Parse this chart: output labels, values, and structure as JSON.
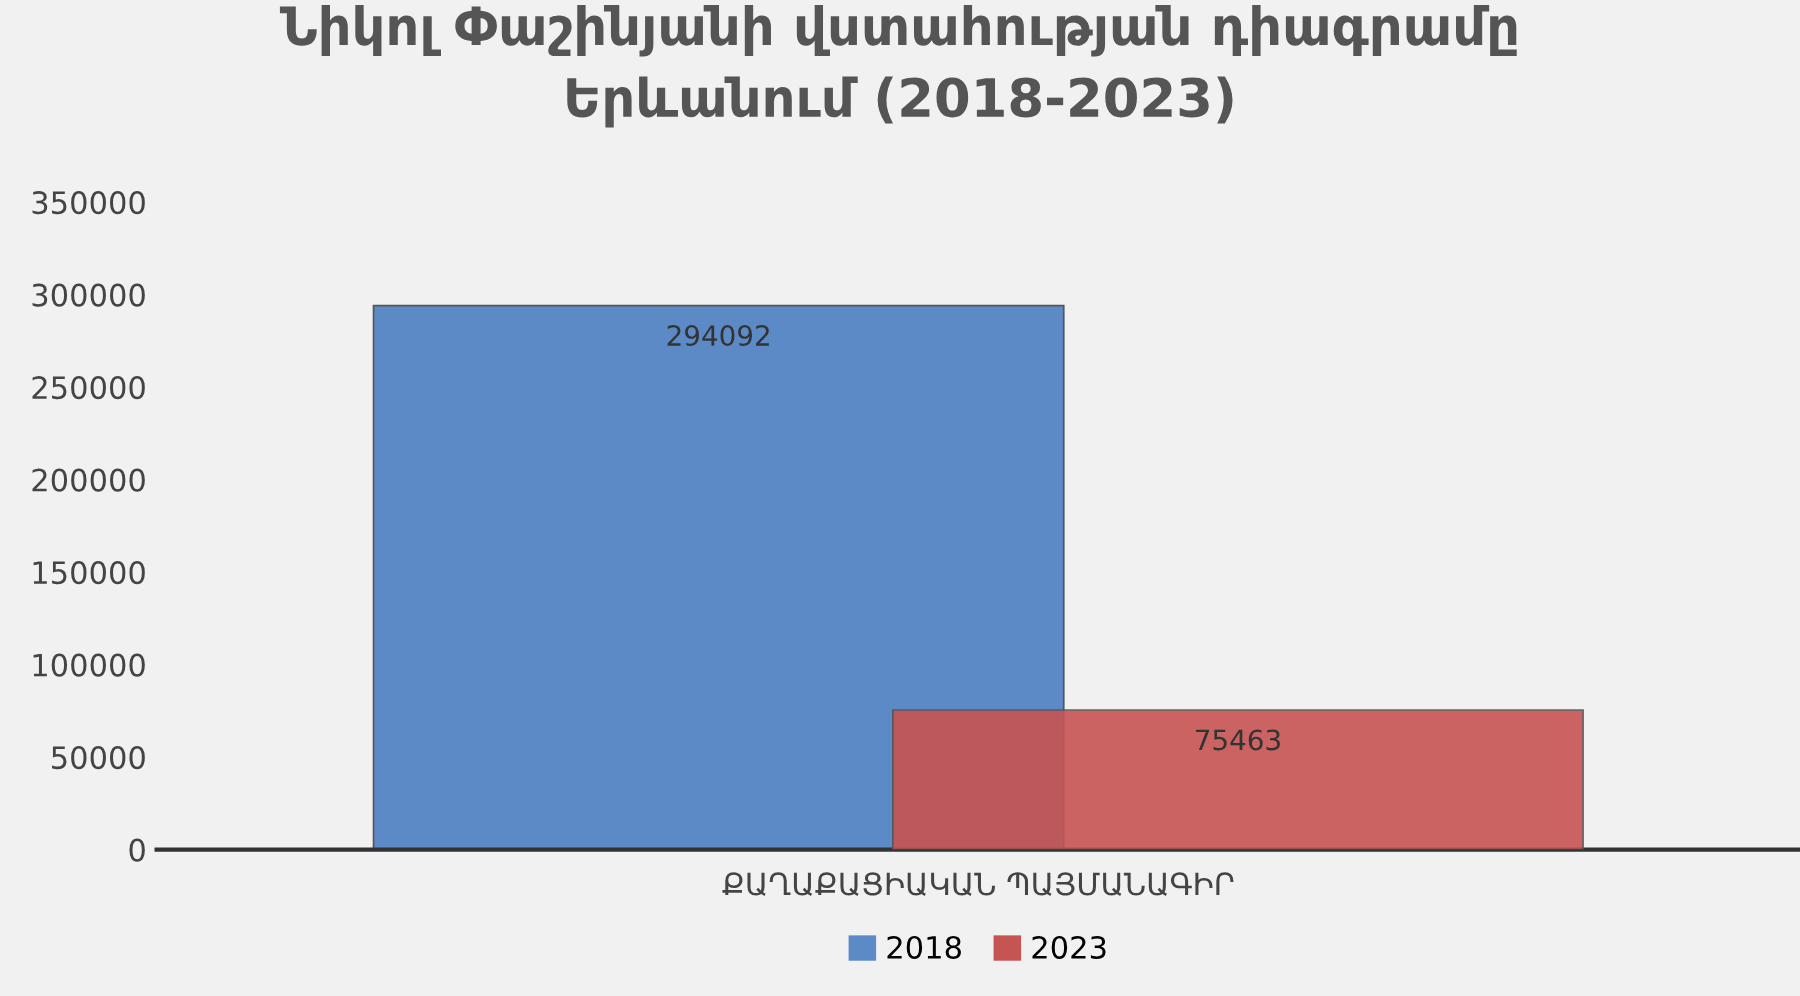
{
  "chart_data": {
    "type": "bar",
    "title": "Նիկոլ Փաշինյանի վստահության դիագրամը\nԵրևանում (2018-2023)",
    "categories": [
      "ՔԱՂԱՔԱՑԻԱԿԱՆ ՊԱՅՄԱՆԱԳԻՐ"
    ],
    "series": [
      {
        "name": "2018",
        "color": "#5b8ac6",
        "values": [
          294092
        ]
      },
      {
        "name": "2023",
        "color": "#c65452",
        "values": [
          75463
        ]
      }
    ],
    "ylim": [
      0,
      350000
    ],
    "yticks": [
      0,
      50000,
      100000,
      150000,
      200000,
      250000,
      300000,
      350000
    ],
    "data_labels": true,
    "legend": "bottom",
    "grid": false
  }
}
